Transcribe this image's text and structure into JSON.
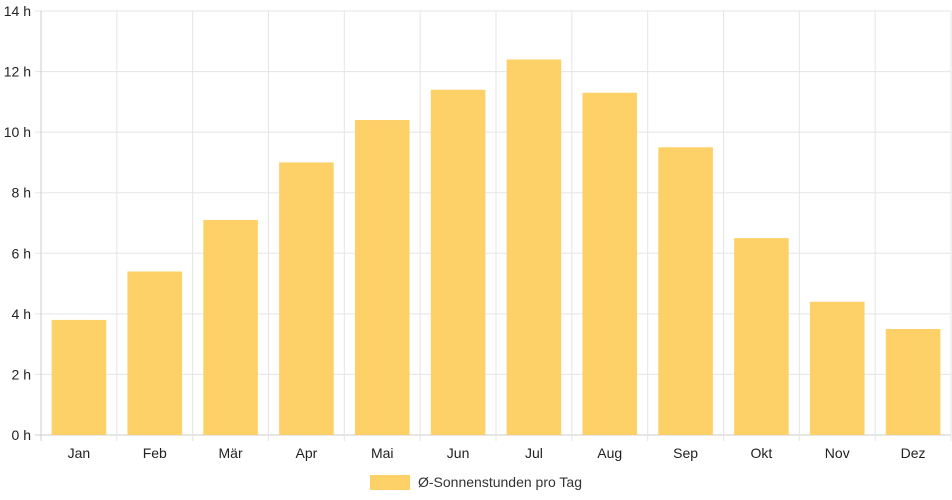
{
  "chart_data": {
    "type": "bar",
    "categories": [
      "Jan",
      "Feb",
      "Mär",
      "Apr",
      "Mai",
      "Jun",
      "Jul",
      "Aug",
      "Sep",
      "Okt",
      "Nov",
      "Dez"
    ],
    "series": [
      {
        "name": "Ø-Sonnenstunden pro Tag",
        "values": [
          3.8,
          5.4,
          7.1,
          9.0,
          10.4,
          11.4,
          12.4,
          11.3,
          9.5,
          6.5,
          4.4,
          3.5
        ]
      }
    ],
    "y_ticks": [
      "0 h",
      "2 h",
      "4 h",
      "6 h",
      "8 h",
      "10 h",
      "12 h",
      "14 h"
    ],
    "ylim": [
      0,
      14
    ],
    "grid": true,
    "legend_position": "bottom",
    "colors": {
      "bar": "#fdd068",
      "grid": "#e5e5e5"
    }
  }
}
